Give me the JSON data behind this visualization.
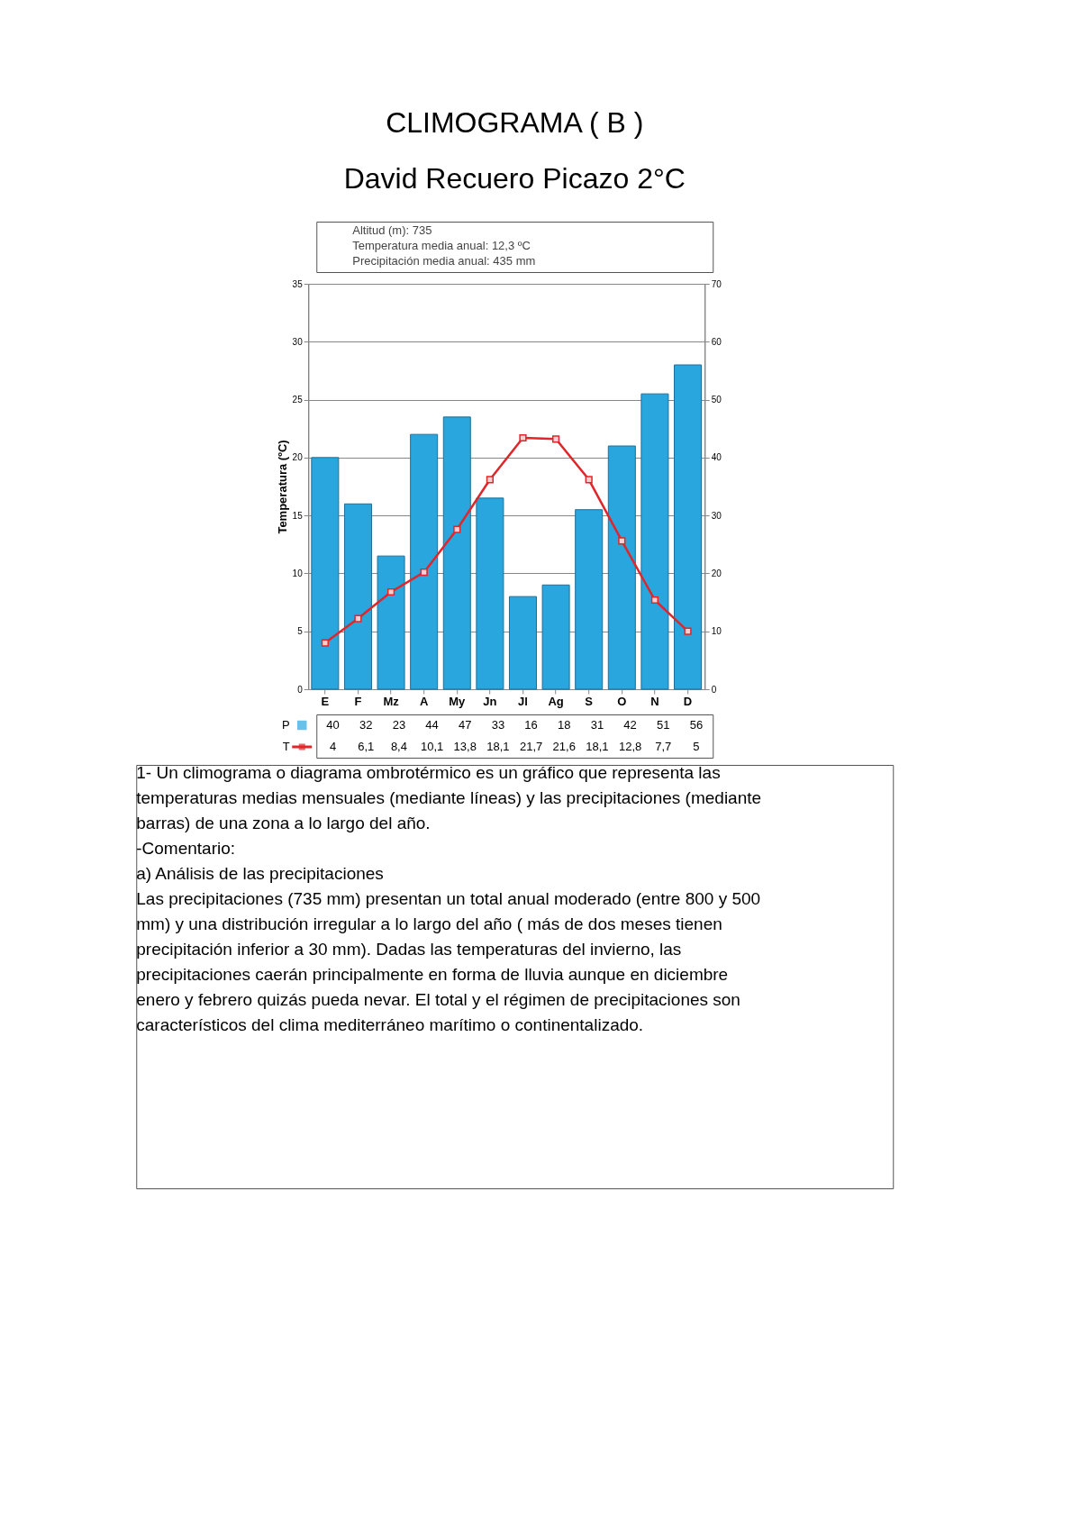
{
  "chart_data": {
    "type": "bar",
    "title": "CLIMOGRAMA ( B )",
    "subtitle": "David Recuero Picazo 2°C",
    "ylabel": "Temperatura (ºC)",
    "categories": [
      "E",
      "F",
      "Mz",
      "A",
      "My",
      "Jn",
      "Jl",
      "Ag",
      "S",
      "O",
      "N",
      "D"
    ],
    "series": [
      {
        "name": "P",
        "axis": "y2",
        "color": "#29a6de",
        "values": [
          40,
          32,
          23,
          44,
          47,
          33,
          16,
          18,
          31,
          42,
          51,
          56
        ],
        "value_labels": [
          "40",
          "32",
          "23",
          "44",
          "47",
          "33",
          "16",
          "18",
          "31",
          "42",
          "51",
          "56"
        ]
      },
      {
        "name": "T",
        "type": "line",
        "color": "#e0262a",
        "marker": "square",
        "values": [
          4,
          6.1,
          8.4,
          10.1,
          13.8,
          18.1,
          21.7,
          21.6,
          18.1,
          12.8,
          7.7,
          5
        ],
        "value_labels": [
          "4",
          "6,1",
          "8,4",
          "10,1",
          "13,8",
          "18,1",
          "21,7",
          "21,6",
          "18,1",
          "12,8",
          "7,7",
          "5"
        ]
      }
    ],
    "ylim": [
      0,
      35
    ],
    "yticks": [
      0,
      5,
      10,
      15,
      20,
      25,
      30,
      35
    ],
    "y2lim": [
      0,
      70
    ],
    "y2ticks": [
      0,
      10,
      20,
      30,
      40,
      50,
      60,
      70
    ],
    "grid": "y",
    "legend": "bottom left",
    "annotations": [
      "Altitud (m): 735",
      "Temperatura media anual: 12,3 ºC",
      "Precipitación media anual: 435 mm",
      "1- Un climograma o diagrama ombrotérmico es un gráfico que representa las temperaturas medias mensuales (mediante líneas) y las precipitaciones (mediante barras) de una zona a lo largo del año.",
      "-Comentario:",
      "a) Análisis de las precipitaciones",
      "Las precipitaciones (735 mm) presentan un total anual moderado (entre 800 y 500 mm) y una distribución irregular a lo largo del año ( más de dos meses tienen precipitación inferior a 30 mm). Dadas las temperaturas del invierno, las precipitaciones caerán principalmente en forma de lluvia  aunque en diciembre enero y febrero quizás pueda nevar. El total y el régimen de precipitaciones son característicos del clima mediterráneo marítimo o continentalizado."
    ]
  }
}
